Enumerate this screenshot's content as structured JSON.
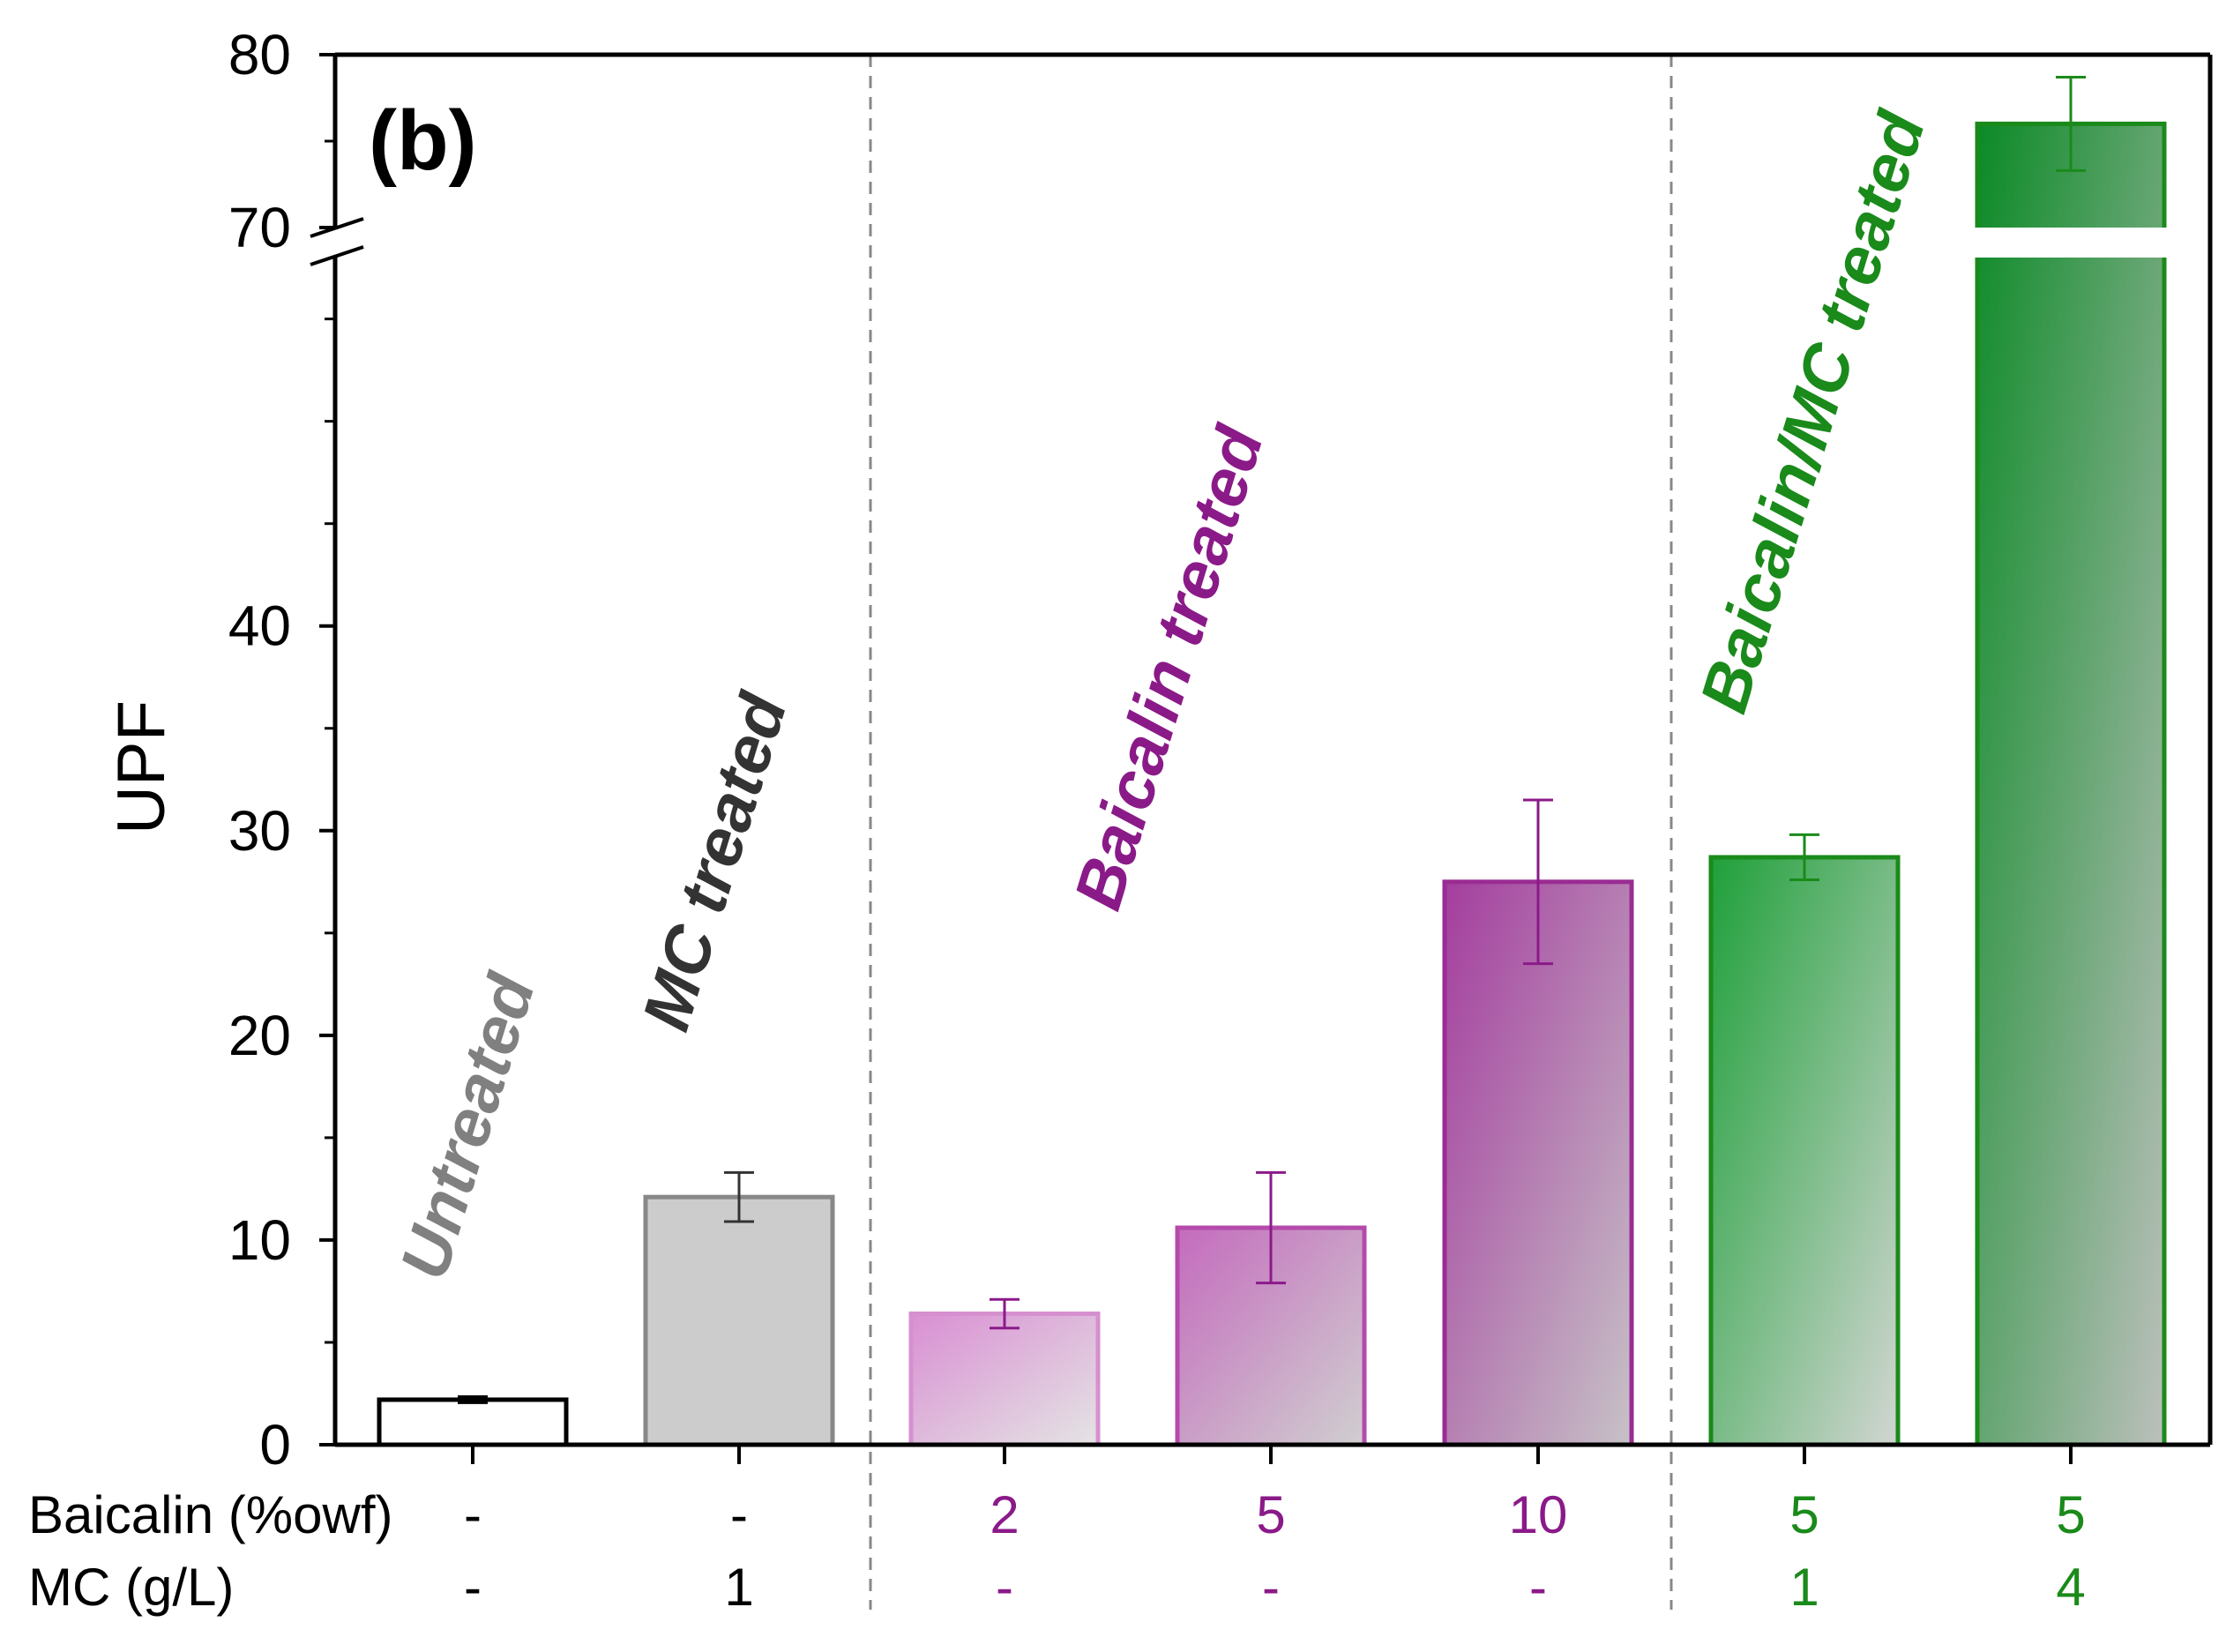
{
  "chart_data": {
    "type": "bar",
    "panel_label": "(b)",
    "ylabel": "UPF",
    "ylim": [
      0,
      80
    ],
    "axis_break": [
      58,
      70
    ],
    "y_ticks": [
      "0",
      "10",
      "20",
      "30",
      "40",
      "70",
      "80"
    ],
    "categories": [
      "Untreated",
      "MC",
      "Baicalin 2",
      "Baicalin 5",
      "Baicalin 10",
      "Baicalin/MC 5/1",
      "Baicalin/MC 5/4"
    ],
    "values": [
      2.2,
      12.1,
      6.4,
      10.6,
      27.5,
      28.7,
      76.0
    ],
    "errors": [
      0.15,
      1.2,
      0.7,
      2.7,
      4.0,
      1.1,
      2.7
    ],
    "row_labels": {
      "baicalin": "Baicalin (%owf)",
      "mc": "MC (g/L)"
    },
    "baicalin_row": [
      "-",
      "-",
      "2",
      "5",
      "10",
      "5",
      "5"
    ],
    "mc_row": [
      "-",
      "1",
      "-",
      "-",
      "-",
      "1",
      "4"
    ],
    "group_labels": [
      "Untreated",
      "MC treated",
      "Baicalin treated",
      "Baicalin/MC treated"
    ],
    "colors": {
      "untreated": "#808080",
      "mc": "#333333",
      "baicalin": "#8b1a89",
      "baicalin_mc": "#1a8a1a"
    }
  }
}
